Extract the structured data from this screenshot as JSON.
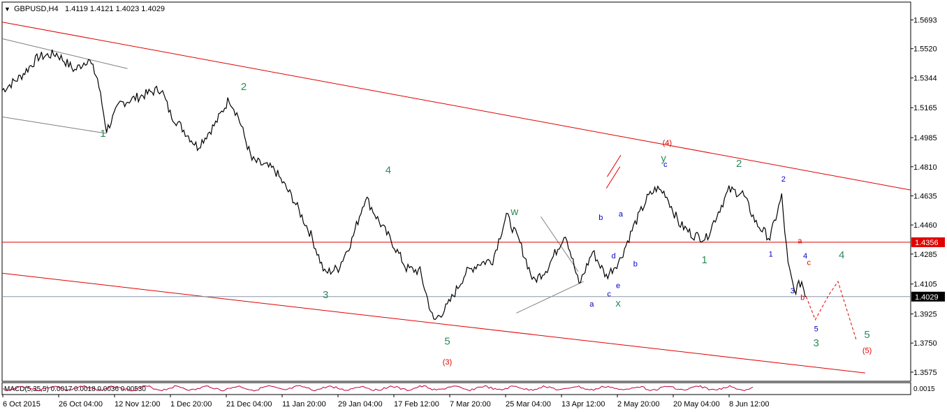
{
  "header": {
    "symbol": "GBPUSD,H4",
    "ohlc": "1.4119 1.4121 1.4023 1.4029"
  },
  "indicator": {
    "label": "MACD(5,35,5) 0.0017 0.0018 0.0036 0.00530",
    "scale_label": "0.0015"
  },
  "colors": {
    "candles": "#000000",
    "trend_lines": "#e00000",
    "aux_lines": "#808080",
    "green_wave": "#2e8b57",
    "blue_wave": "#0000cc",
    "red_wave": "#e00000",
    "current_price_line": "#8899aa"
  },
  "chart_data": {
    "type": "line",
    "series_description": "candlestick price series",
    "y_ticks": [
      "1.5693",
      "1.5520",
      "1.5344",
      "1.5165",
      "1.4985",
      "1.4810",
      "1.4635",
      "1.4460",
      "1.4285",
      "1.4105",
      "1.3925",
      "1.3750",
      "1.3575"
    ],
    "ylim": [
      1.352,
      1.58
    ],
    "x_ticks": [
      "6 Oct 2015",
      "26 Oct 04:00",
      "12 Nov 12:00",
      "1 Dec 20:00",
      "21 Dec 04:00",
      "11 Jan 20:00",
      "29 Jan 04:00",
      "17 Feb 12:00",
      "7 Mar 20:00",
      "25 Mar 04:00",
      "13 Apr 12:00",
      "2 May 20:00",
      "20 May 04:00",
      "8 Jun 12:00"
    ],
    "price_labels": [
      {
        "value": 1.4356,
        "text": "1.4356",
        "style": "red"
      },
      {
        "value": 1.4029,
        "text": "1.4029",
        "style": "dark"
      }
    ],
    "price_path": [
      [
        0,
        1.527
      ],
      [
        0.02,
        1.535
      ],
      [
        0.04,
        1.547
      ],
      [
        0.06,
        1.549
      ],
      [
        0.08,
        1.539
      ],
      [
        0.095,
        1.546
      ],
      [
        0.105,
        1.534
      ],
      [
        0.115,
        1.503
      ],
      [
        0.13,
        1.519
      ],
      [
        0.15,
        1.523
      ],
      [
        0.175,
        1.528
      ],
      [
        0.185,
        1.513
      ],
      [
        0.2,
        1.503
      ],
      [
        0.215,
        1.493
      ],
      [
        0.235,
        1.507
      ],
      [
        0.25,
        1.522
      ],
      [
        0.26,
        1.511
      ],
      [
        0.275,
        1.485
      ],
      [
        0.3,
        1.479
      ],
      [
        0.32,
        1.462
      ],
      [
        0.34,
        1.44
      ],
      [
        0.355,
        1.417
      ],
      [
        0.37,
        1.42
      ],
      [
        0.385,
        1.437
      ],
      [
        0.4,
        1.463
      ],
      [
        0.415,
        1.448
      ],
      [
        0.43,
        1.435
      ],
      [
        0.445,
        1.42
      ],
      [
        0.46,
        1.418
      ],
      [
        0.475,
        1.388
      ],
      [
        0.49,
        1.397
      ],
      [
        0.51,
        1.417
      ],
      [
        0.525,
        1.423
      ],
      [
        0.54,
        1.425
      ],
      [
        0.555,
        1.452
      ],
      [
        0.57,
        1.435
      ],
      [
        0.585,
        1.412
      ],
      [
        0.6,
        1.42
      ],
      [
        0.62,
        1.441
      ],
      [
        0.635,
        1.41
      ],
      [
        0.65,
        1.43
      ],
      [
        0.665,
        1.415
      ],
      [
        0.68,
        1.425
      ],
      [
        0.695,
        1.445
      ],
      [
        0.71,
        1.462
      ],
      [
        0.72,
        1.468
      ],
      [
        0.73,
        1.465
      ],
      [
        0.745,
        1.447
      ],
      [
        0.76,
        1.44
      ],
      [
        0.775,
        1.438
      ],
      [
        0.79,
        1.456
      ],
      [
        0.8,
        1.467
      ],
      [
        0.815,
        1.465
      ],
      [
        0.83,
        1.447
      ],
      [
        0.845,
        1.438
      ],
      [
        0.858,
        1.463
      ],
      [
        0.865,
        1.422
      ],
      [
        0.872,
        1.406
      ],
      [
        0.88,
        1.412
      ],
      [
        0.885,
        1.4029
      ]
    ],
    "projection_path": [
      [
        0.885,
        1.4029
      ],
      [
        0.895,
        1.389
      ],
      [
        0.91,
        1.404
      ],
      [
        0.92,
        1.412
      ],
      [
        0.94,
        1.377
      ]
    ],
    "channel_lines": [
      {
        "from": [
          0,
          1.568
        ],
        "to": [
          1,
          1.467
        ]
      },
      {
        "from": [
          0,
          1.417
        ],
        "to": [
          0.95,
          1.357
        ]
      }
    ],
    "wave_labels": [
      {
        "text": "1",
        "t": 0.111,
        "v": 1.499,
        "color": "green",
        "size": "large"
      },
      {
        "text": "2",
        "t": 0.266,
        "v": 1.527,
        "color": "green",
        "size": "large"
      },
      {
        "text": "3",
        "t": 0.356,
        "v": 1.402,
        "color": "green",
        "size": "large"
      },
      {
        "text": "4",
        "t": 0.425,
        "v": 1.477,
        "color": "green",
        "size": "large"
      },
      {
        "text": "5",
        "t": 0.49,
        "v": 1.374,
        "color": "green",
        "size": "large"
      },
      {
        "text": "(3)",
        "t": 0.49,
        "v": 1.362,
        "color": "red",
        "size": "small"
      },
      {
        "text": "w",
        "t": 0.564,
        "v": 1.452,
        "color": "green",
        "size": "large"
      },
      {
        "text": "x",
        "t": 0.678,
        "v": 1.397,
        "color": "green",
        "size": "large"
      },
      {
        "text": "y",
        "t": 0.728,
        "v": 1.484,
        "color": "green",
        "size": "large"
      },
      {
        "text": "(4)",
        "t": 0.732,
        "v": 1.494,
        "color": "red",
        "size": "small"
      },
      {
        "text": "1",
        "t": 0.773,
        "v": 1.423,
        "color": "green",
        "size": "large"
      },
      {
        "text": "2",
        "t": 0.811,
        "v": 1.481,
        "color": "green",
        "size": "large"
      },
      {
        "text": "1",
        "t": 0.846,
        "v": 1.427,
        "color": "blue",
        "size": "small"
      },
      {
        "text": "2",
        "t": 0.86,
        "v": 1.472,
        "color": "blue",
        "size": "small"
      },
      {
        "text": "3",
        "t": 0.87,
        "v": 1.405,
        "color": "blue",
        "size": "small"
      },
      {
        "text": "4",
        "t": 0.884,
        "v": 1.426,
        "color": "blue",
        "size": "small"
      },
      {
        "text": "5",
        "t": 0.896,
        "v": 1.382,
        "color": "blue",
        "size": "small"
      },
      {
        "text": "3",
        "t": 0.896,
        "v": 1.373,
        "color": "green",
        "size": "large"
      },
      {
        "text": "4",
        "t": 0.924,
        "v": 1.426,
        "color": "green",
        "size": "large"
      },
      {
        "text": "5",
        "t": 0.952,
        "v": 1.378,
        "color": "green",
        "size": "large"
      },
      {
        "text": "(5)",
        "t": 0.952,
        "v": 1.369,
        "color": "red",
        "size": "small"
      },
      {
        "text": "a",
        "t": 0.649,
        "v": 1.397,
        "color": "blue",
        "size": "small"
      },
      {
        "text": "b",
        "t": 0.659,
        "v": 1.449,
        "color": "blue",
        "size": "small"
      },
      {
        "text": "c",
        "t": 0.668,
        "v": 1.403,
        "color": "blue",
        "size": "small"
      },
      {
        "text": "d",
        "t": 0.673,
        "v": 1.426,
        "color": "blue",
        "size": "small"
      },
      {
        "text": "e",
        "t": 0.678,
        "v": 1.408,
        "color": "blue",
        "size": "small"
      },
      {
        "text": "a",
        "t": 0.681,
        "v": 1.451,
        "color": "blue",
        "size": "small"
      },
      {
        "text": "b",
        "t": 0.697,
        "v": 1.421,
        "color": "blue",
        "size": "small"
      },
      {
        "text": "c",
        "t": 0.73,
        "v": 1.481,
        "color": "blue",
        "size": "small"
      },
      {
        "text": "a",
        "t": 0.878,
        "v": 1.435,
        "color": "red",
        "size": "small"
      },
      {
        "text": "b",
        "t": 0.881,
        "v": 1.401,
        "color": "red",
        "size": "small"
      },
      {
        "text": "c",
        "t": 0.888,
        "v": 1.422,
        "color": "red",
        "size": "small"
      }
    ]
  }
}
